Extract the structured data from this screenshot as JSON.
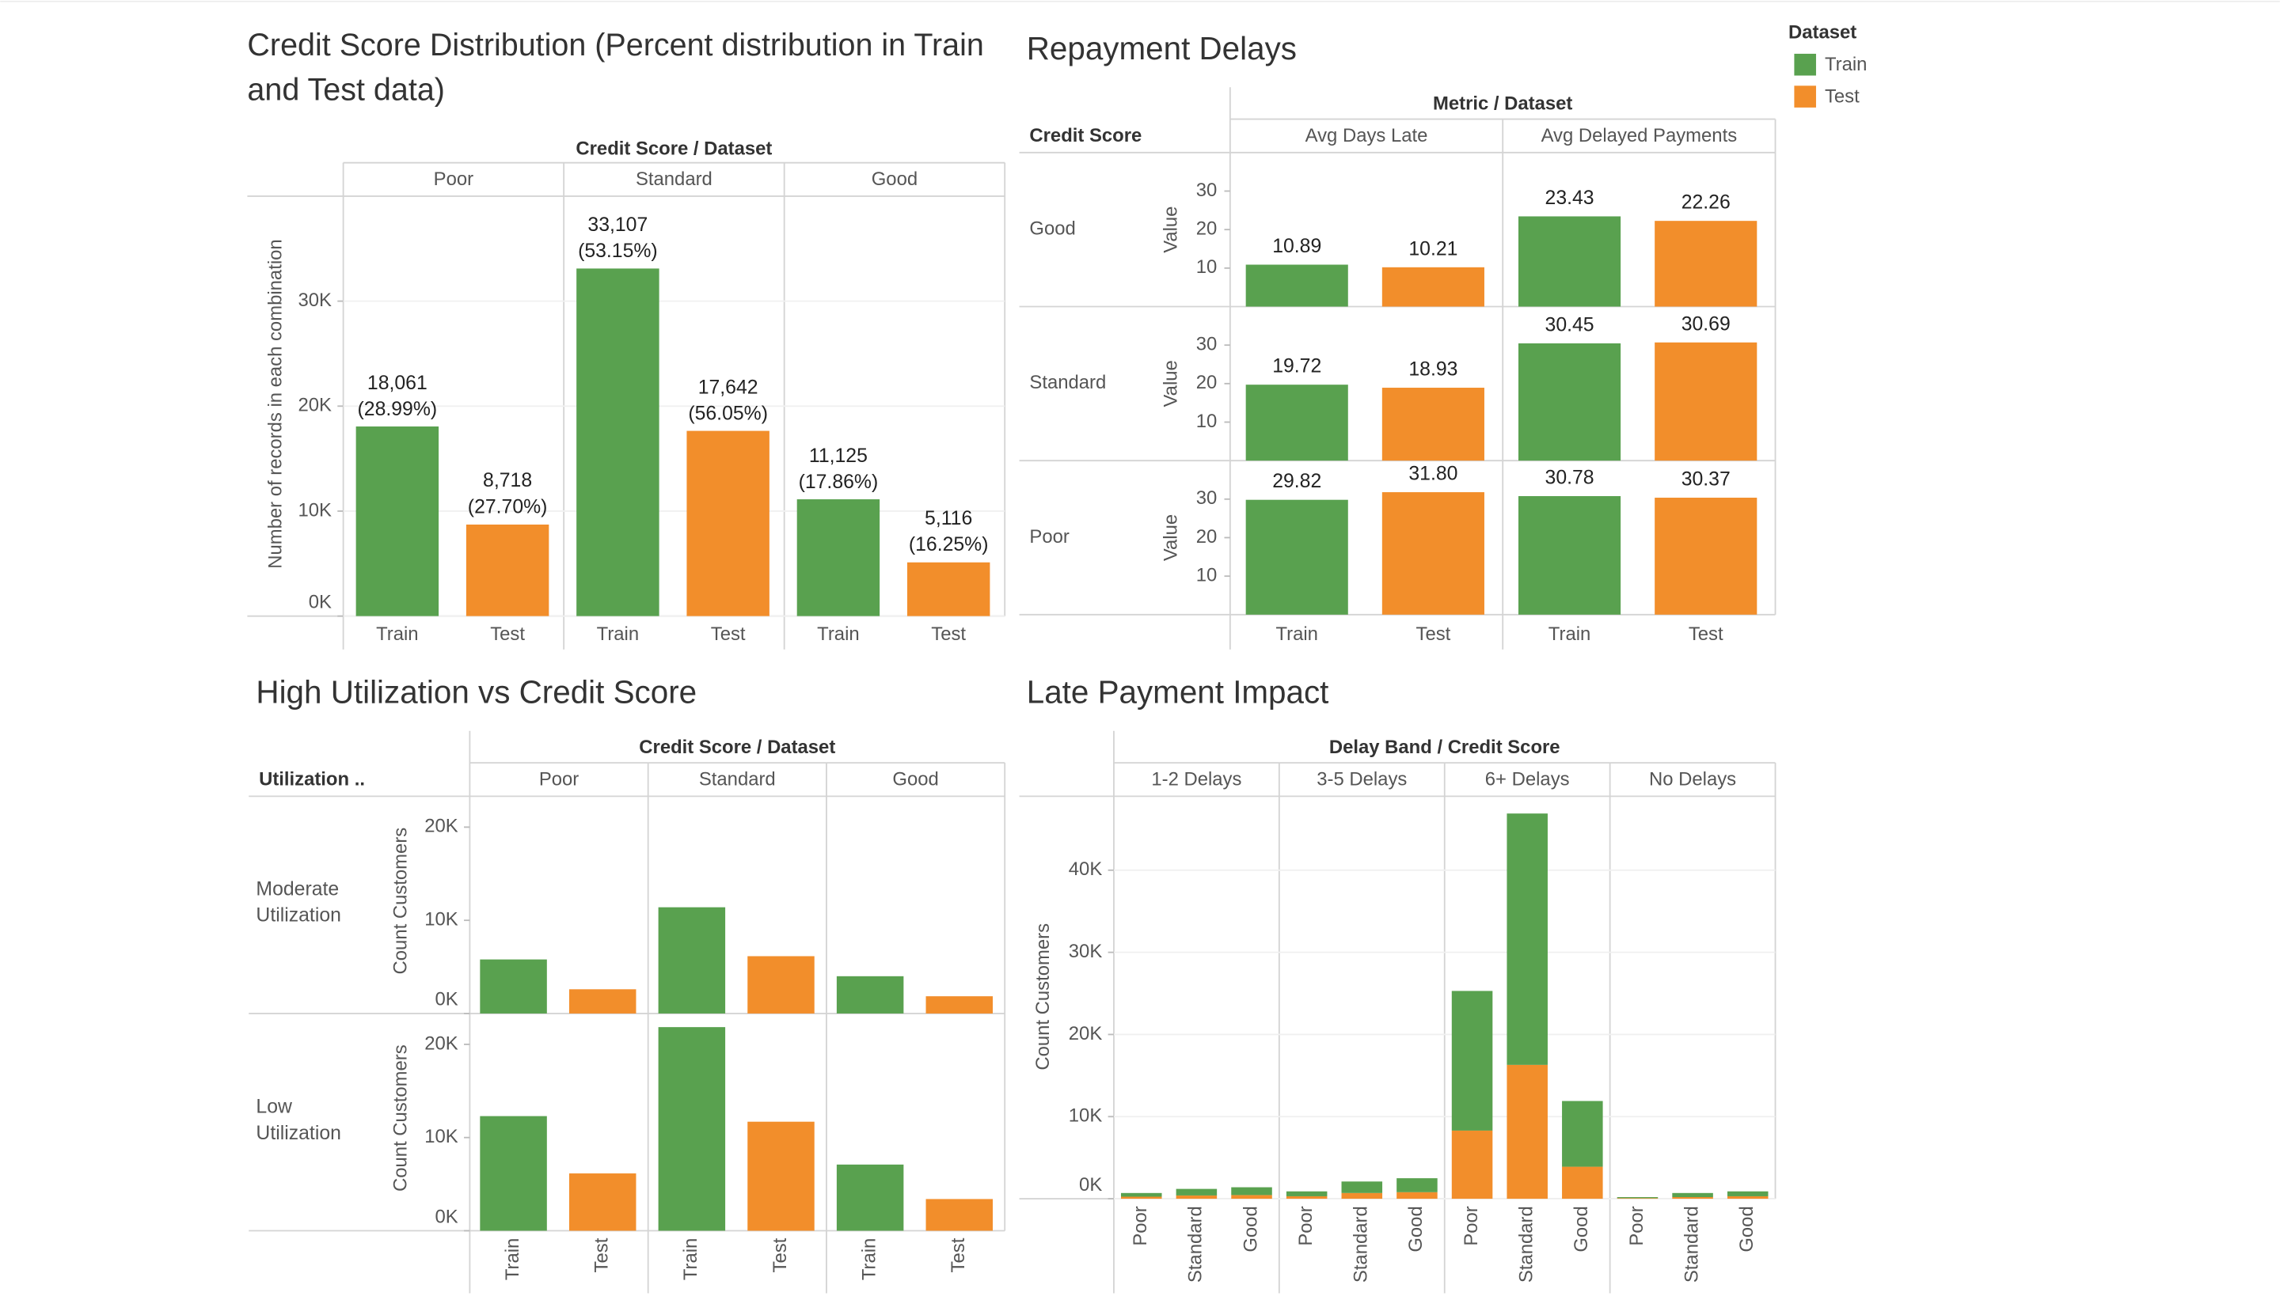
{
  "legend": {
    "title": "Dataset",
    "items": [
      {
        "name": "Train",
        "color": "#59a14f"
      },
      {
        "name": "Test",
        "color": "#f28e2b"
      }
    ]
  },
  "chart_data": [
    {
      "type": "bar",
      "title": "Credit Score Distribution (Percent distribution in Train and Test data)",
      "column_label": "Credit Score / Dataset",
      "categories": [
        "Poor",
        "Standard",
        "Good"
      ],
      "ylabel": "Number of records in each combination",
      "ylim": [
        0,
        40000
      ],
      "yticks": [
        {
          "value": 0,
          "label": "0K"
        },
        {
          "value": 10000,
          "label": "10K"
        },
        {
          "value": 20000,
          "label": "20K"
        },
        {
          "value": 30000,
          "label": "30K"
        }
      ],
      "series": [
        {
          "name": "Train",
          "color": "#59a14f",
          "values": [
            18061,
            33107,
            11125
          ],
          "value_labels": [
            "18,061\n(28.99%)",
            "33,107\n(53.15%)",
            "11,125\n(17.86%)"
          ]
        },
        {
          "name": "Test",
          "color": "#f28e2b",
          "values": [
            8718,
            17642,
            5116
          ],
          "value_labels": [
            "8,718\n(27.70%)",
            "17,642\n(56.05%)",
            "5,116\n(16.25%)"
          ]
        }
      ]
    },
    {
      "type": "bar_matrix",
      "title": "Repayment Delays",
      "column_label": "Metric / Dataset",
      "row_label": "Credit Score",
      "metrics": [
        "Avg Days Late",
        "Avg Delayed Payments"
      ],
      "ylabel": "Value",
      "ylim": [
        0,
        40
      ],
      "yticks": [
        10,
        20,
        30
      ],
      "rows": [
        {
          "name": "Good",
          "series": [
            {
              "name": "Train",
              "color": "#59a14f",
              "values": [
                10.89,
                23.43
              ],
              "value_labels": [
                "10.89",
                "23.43"
              ]
            },
            {
              "name": "Test",
              "color": "#f28e2b",
              "values": [
                10.21,
                22.26
              ],
              "value_labels": [
                "10.21",
                "22.26"
              ]
            }
          ]
        },
        {
          "name": "Standard",
          "series": [
            {
              "name": "Train",
              "color": "#59a14f",
              "values": [
                19.72,
                30.45
              ],
              "value_labels": [
                "19.72",
                "30.45"
              ]
            },
            {
              "name": "Test",
              "color": "#f28e2b",
              "values": [
                18.93,
                30.69
              ],
              "value_labels": [
                "18.93",
                "30.69"
              ]
            }
          ]
        },
        {
          "name": "Poor",
          "series": [
            {
              "name": "Train",
              "color": "#59a14f",
              "values": [
                29.82,
                30.78
              ],
              "value_labels": [
                "29.82",
                "30.78"
              ]
            },
            {
              "name": "Test",
              "color": "#f28e2b",
              "values": [
                31.8,
                30.37
              ],
              "value_labels": [
                "31.80",
                "30.37"
              ]
            }
          ]
        }
      ]
    },
    {
      "type": "bar_rows",
      "title": "High Utilization vs Credit Score",
      "column_label": "Credit Score / Dataset",
      "row_label": "Utilization ..",
      "categories": [
        "Poor",
        "Standard",
        "Good"
      ],
      "ylabel": "Count Customers",
      "ylim": [
        0,
        23000
      ],
      "yticks": [
        {
          "value": 0,
          "label": "0K"
        },
        {
          "value": 10000,
          "label": "10K"
        },
        {
          "value": 20000,
          "label": "20K"
        }
      ],
      "rows": [
        {
          "name": "Moderate Utilization",
          "series": [
            {
              "name": "Train",
              "color": "#59a14f",
              "values": [
                5800,
                11400,
                4000
              ]
            },
            {
              "name": "Test",
              "color": "#f28e2b",
              "values": [
                2600,
                6150,
                1850
              ]
            }
          ]
        },
        {
          "name": "Low Utilization",
          "series": [
            {
              "name": "Train",
              "color": "#59a14f",
              "values": [
                12300,
                21850,
                7100
              ]
            },
            {
              "name": "Test",
              "color": "#f28e2b",
              "values": [
                6150,
                11700,
                3400
              ]
            }
          ]
        }
      ]
    },
    {
      "type": "stacked_bar",
      "title": "Late Payment Impact",
      "column_label": "Delay Band / Credit Score",
      "ylabel": "Count Customers",
      "ylim": [
        0,
        49000
      ],
      "yticks": [
        {
          "value": 0,
          "label": "0K"
        },
        {
          "value": 10000,
          "label": "10K"
        },
        {
          "value": 20000,
          "label": "20K"
        },
        {
          "value": 30000,
          "label": "30K"
        },
        {
          "value": 40000,
          "label": "40K"
        }
      ],
      "panels": [
        {
          "name": "1-2 Delays",
          "categories": [
            "Poor",
            "Standard",
            "Good"
          ],
          "series": [
            {
              "color": "#f28e2b",
              "values": [
                250,
                400,
                450
              ]
            },
            {
              "color": "#59a14f",
              "values": [
                450,
                800,
                950
              ]
            }
          ]
        },
        {
          "name": "3-5 Delays",
          "categories": [
            "Poor",
            "Standard",
            "Good"
          ],
          "series": [
            {
              "color": "#f28e2b",
              "values": [
                300,
                700,
                800
              ]
            },
            {
              "color": "#59a14f",
              "values": [
                600,
                1400,
                1700
              ]
            }
          ]
        },
        {
          "name": "6+ Delays",
          "categories": [
            "Poor",
            "Standard",
            "Good"
          ],
          "series": [
            {
              "color": "#f28e2b",
              "values": [
                8300,
                16300,
                3900
              ]
            },
            {
              "color": "#59a14f",
              "values": [
                17000,
                30600,
                8000
              ]
            }
          ]
        },
        {
          "name": "No Delays",
          "categories": [
            "Poor",
            "Standard",
            "Good"
          ],
          "series": [
            {
              "color": "#f28e2b",
              "values": [
                70,
                200,
                300
              ]
            },
            {
              "color": "#59a14f",
              "values": [
                130,
                500,
                600
              ]
            }
          ]
        }
      ]
    }
  ]
}
